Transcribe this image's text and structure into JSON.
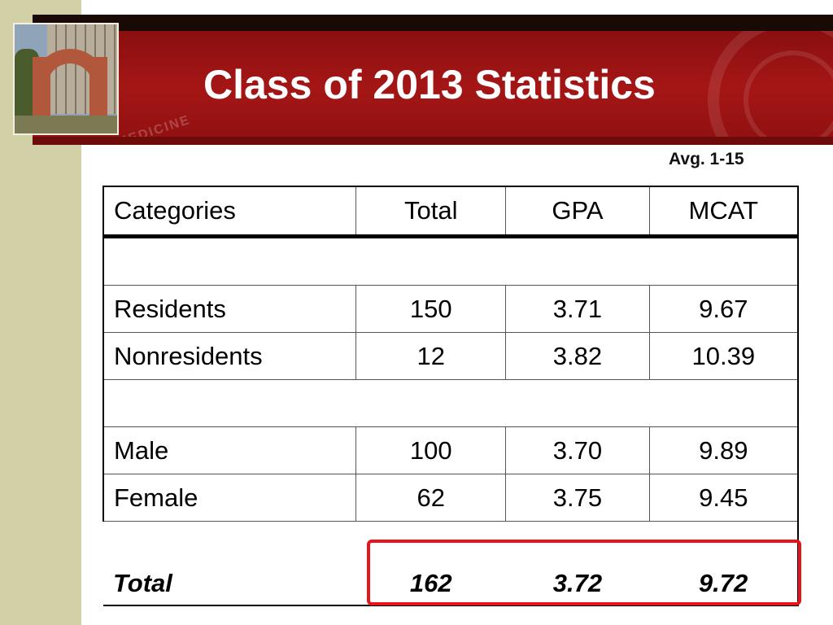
{
  "slide": {
    "title": "Class of 2013 Statistics",
    "note": "Avg. 1-15",
    "seal_text": "OF MEDICINE",
    "accent_color": "#a51616",
    "highlight_color": "#e8141c"
  },
  "table": {
    "headers": [
      "Categories",
      "Total",
      "GPA",
      "MCAT"
    ],
    "rows": [
      {
        "category": "Residents",
        "total": "150",
        "gpa": "3.71",
        "mcat": "9.67"
      },
      {
        "category": "Nonresidents",
        "total": "12",
        "gpa": "3.82",
        "mcat": "10.39"
      },
      {
        "category": "Male",
        "total": "100",
        "gpa": "3.70",
        "mcat": "9.89"
      },
      {
        "category": "Female",
        "total": "62",
        "gpa": "3.75",
        "mcat": "9.45"
      }
    ],
    "total_row": {
      "category": "Total",
      "total": "162",
      "gpa": "3.72",
      "mcat": "9.72"
    }
  }
}
